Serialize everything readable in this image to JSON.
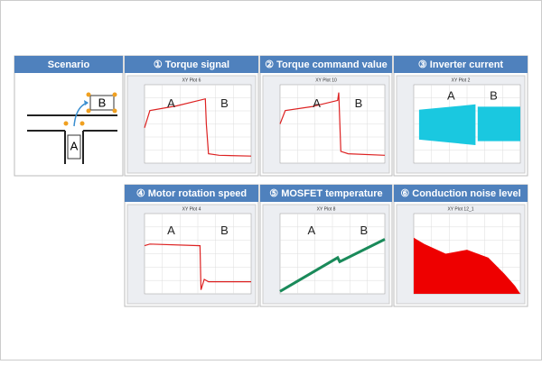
{
  "panels": [
    {
      "header": "Scenario",
      "labels": [
        "A",
        "B"
      ]
    },
    {
      "header": "① Torque signal",
      "plot_title": "XY Plot 6",
      "labels": [
        "A",
        "B"
      ]
    },
    {
      "header": "② Torque command value",
      "plot_title": "XY Plot 10",
      "labels": [
        "A",
        "B"
      ]
    },
    {
      "header": "③ Inverter current",
      "plot_title": "XY Plot 2",
      "labels": [
        "A",
        "B"
      ]
    },
    {
      "header": "④ Motor rotation speed",
      "plot_title": "XY Plot 4",
      "labels": [
        "A",
        "B"
      ]
    },
    {
      "header": "⑤ MOSFET temperature",
      "plot_title": "XY Plot 8",
      "labels": [
        "A",
        "B"
      ]
    },
    {
      "header": "⑥ Conduction noise level",
      "plot_title": "XY Plot 12_1"
    }
  ]
}
